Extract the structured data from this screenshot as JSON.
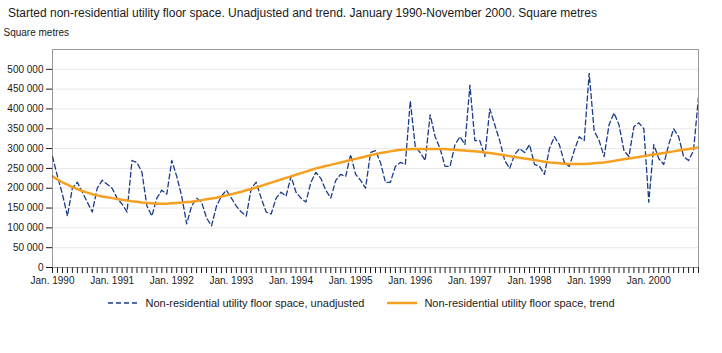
{
  "chart_data": {
    "type": "line",
    "title": "Started non-residential utility floor space. Unadjusted and trend. January 1990-November 2000. Square metres",
    "y_label": "Square metres",
    "categories": [
      "Jan. 1990",
      null,
      null,
      null,
      null,
      null,
      null,
      null,
      null,
      null,
      null,
      null,
      "Jan. 1991",
      null,
      null,
      null,
      null,
      null,
      null,
      null,
      null,
      null,
      null,
      null,
      "Jan. 1992",
      null,
      null,
      null,
      null,
      null,
      null,
      null,
      null,
      null,
      null,
      null,
      "Jan. 1993",
      null,
      null,
      null,
      null,
      null,
      null,
      null,
      null,
      null,
      null,
      null,
      "Jan. 1994",
      null,
      null,
      null,
      null,
      null,
      null,
      null,
      null,
      null,
      null,
      null,
      "Jan. 1995",
      null,
      null,
      null,
      null,
      null,
      null,
      null,
      null,
      null,
      null,
      null,
      "Jan. 1996",
      null,
      null,
      null,
      null,
      null,
      null,
      null,
      null,
      null,
      null,
      null,
      "Jan. 1997",
      null,
      null,
      null,
      null,
      null,
      null,
      null,
      null,
      null,
      null,
      null,
      "Jan. 1998",
      null,
      null,
      null,
      null,
      null,
      null,
      null,
      null,
      null,
      null,
      null,
      "Jan. 1999",
      null,
      null,
      null,
      null,
      null,
      null,
      null,
      null,
      null,
      null,
      null,
      "Jan. 2000",
      null,
      null,
      null,
      null,
      null,
      null,
      null,
      null,
      null,
      null
    ],
    "series": [
      {
        "name": "Non-residential utility floor space, unadjusted",
        "color": "#1a3a8a",
        "line_style": "dashed",
        "values": [
          280000,
          230000,
          185000,
          130000,
          200000,
          215000,
          190000,
          165000,
          140000,
          200000,
          220000,
          210000,
          200000,
          175000,
          160000,
          140000,
          270000,
          265000,
          240000,
          155000,
          130000,
          175000,
          195000,
          185000,
          270000,
          230000,
          180000,
          110000,
          155000,
          175000,
          165000,
          125000,
          105000,
          155000,
          180000,
          195000,
          175000,
          155000,
          140000,
          130000,
          200000,
          215000,
          175000,
          140000,
          135000,
          175000,
          190000,
          180000,
          230000,
          190000,
          175000,
          165000,
          215000,
          240000,
          225000,
          195000,
          175000,
          220000,
          235000,
          230000,
          285000,
          235000,
          220000,
          200000,
          290000,
          295000,
          265000,
          215000,
          215000,
          255000,
          265000,
          260000,
          420000,
          305000,
          290000,
          270000,
          385000,
          330000,
          300000,
          255000,
          255000,
          310000,
          330000,
          310000,
          460000,
          320000,
          320000,
          280000,
          400000,
          360000,
          320000,
          270000,
          250000,
          285000,
          300000,
          290000,
          310000,
          260000,
          255000,
          235000,
          300000,
          330000,
          310000,
          265000,
          255000,
          295000,
          330000,
          320000,
          490000,
          345000,
          320000,
          280000,
          360000,
          390000,
          360000,
          295000,
          280000,
          355000,
          365000,
          350000,
          165000,
          310000,
          275000,
          260000,
          310000,
          350000,
          330000,
          280000,
          270000,
          295000,
          430000
        ]
      },
      {
        "name": "Non-residential utility floor space, trend",
        "color": "#f5a020",
        "line_style": "solid",
        "values": [
          230000,
          222000,
          215000,
          209000,
          203000,
          198000,
          193000,
          189000,
          185000,
          182000,
          179000,
          177000,
          175000,
          173000,
          171000,
          169000,
          167000,
          166000,
          164000,
          163000,
          162000,
          161000,
          161000,
          161000,
          162000,
          163000,
          164000,
          165000,
          166000,
          168000,
          170000,
          172000,
          174000,
          176000,
          179000,
          182000,
          185000,
          188000,
          191000,
          195000,
          198000,
          202000,
          206000,
          210000,
          214000,
          218000,
          222000,
          226000,
          230000,
          234000,
          238000,
          242000,
          246000,
          250000,
          253000,
          256000,
          259000,
          262000,
          265000,
          268000,
          271000,
          274000,
          277000,
          280000,
          283000,
          286000,
          289000,
          291000,
          293000,
          295000,
          297000,
          298000,
          299000,
          299000,
          299000,
          299000,
          299000,
          299000,
          299000,
          299000,
          298000,
          297000,
          296000,
          295000,
          294000,
          293000,
          292000,
          290000,
          289000,
          287000,
          285000,
          283000,
          281000,
          279000,
          277000,
          275000,
          273000,
          271000,
          269000,
          267000,
          265000,
          264000,
          263000,
          262000,
          261000,
          261000,
          261000,
          261000,
          262000,
          263000,
          264000,
          265000,
          267000,
          269000,
          271000,
          273000,
          275000,
          277000,
          279000,
          281000,
          283000,
          285000,
          287000,
          289000,
          291000,
          293000,
          295000,
          297000,
          299000,
          301000,
          303000
        ]
      }
    ],
    "ylim": [
      0,
      550000
    ],
    "yticks": [
      0,
      {
        "value": 50000,
        "label": "50 000"
      },
      {
        "value": 100000,
        "label": "100 000"
      },
      {
        "value": 150000,
        "label": "150 000"
      },
      {
        "value": 200000,
        "label": "200 000"
      },
      {
        "value": 250000,
        "label": "250 000"
      },
      {
        "value": 300000,
        "label": "300 000"
      },
      {
        "value": 350000,
        "label": "350 000"
      },
      {
        "value": 400000,
        "label": "400 000"
      },
      {
        "value": 450000,
        "label": "450 000"
      },
      {
        "value": 500000,
        "label": "500 000"
      }
    ],
    "grid": true,
    "legend": "bottom"
  }
}
